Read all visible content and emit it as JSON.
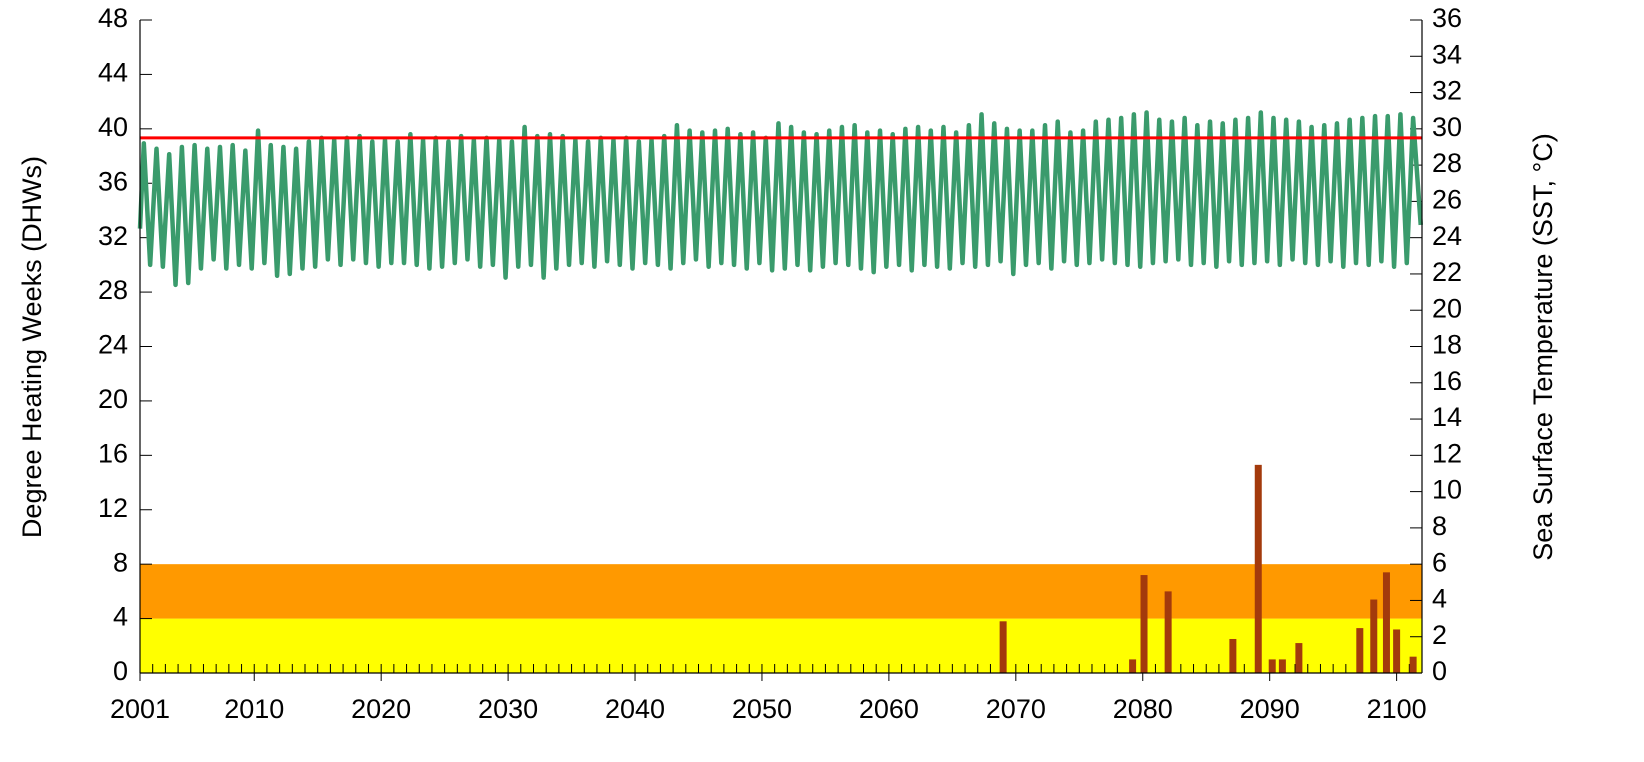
{
  "chart_data": {
    "type": "line",
    "ylabel": "Degree Heating Weeks (DHWs)",
    "y2label": "Sea Surface Temperature (SST, °C)",
    "xlim": [
      2001,
      2102
    ],
    "xticks": [
      2001,
      2010,
      2020,
      2030,
      2040,
      2050,
      2060,
      2070,
      2080,
      2090,
      2100
    ],
    "ylim": [
      0,
      48
    ],
    "yticks": [
      0,
      4,
      8,
      12,
      16,
      20,
      24,
      28,
      32,
      36,
      40,
      44,
      48
    ],
    "y2lim": [
      0,
      36
    ],
    "y2ticks": [
      0,
      2,
      4,
      6,
      8,
      10,
      12,
      14,
      16,
      18,
      20,
      22,
      24,
      26,
      28,
      30,
      32,
      34,
      36
    ],
    "bands": [
      {
        "from": 0,
        "to": 4,
        "color": "#ffff00"
      },
      {
        "from": 4,
        "to": 8,
        "color": "#ff9900"
      }
    ],
    "threshold": {
      "value": 29.5,
      "axis": "y2",
      "color": "#ff0000"
    },
    "series": [
      {
        "name": "SST",
        "type": "line",
        "axis": "y2",
        "color": "#3a9b6c",
        "x": [
          2001,
          2001.3,
          2001.8,
          2002.3,
          2002.8,
          2003.3,
          2003.8,
          2004.3,
          2004.8,
          2005.3,
          2005.8,
          2006.3,
          2006.8,
          2007.3,
          2007.8,
          2008.3,
          2008.8,
          2009.3,
          2009.8,
          2010.3,
          2010.8,
          2011.3,
          2011.8,
          2012.3,
          2012.8,
          2013.3,
          2013.8,
          2014.3,
          2014.8,
          2015.3,
          2015.8,
          2016.3,
          2016.8,
          2017.3,
          2017.8,
          2018.3,
          2018.8,
          2019.3,
          2019.8,
          2020.3,
          2020.8,
          2021.3,
          2021.8,
          2022.3,
          2022.8,
          2023.3,
          2023.8,
          2024.3,
          2024.8,
          2025.3,
          2025.8,
          2026.3,
          2026.8,
          2027.3,
          2027.8,
          2028.3,
          2028.8,
          2029.3,
          2029.8,
          2030.3,
          2030.8,
          2031.3,
          2031.8,
          2032.3,
          2032.8,
          2033.3,
          2033.8,
          2034.3,
          2034.8,
          2035.3,
          2035.8,
          2036.3,
          2036.8,
          2037.3,
          2037.8,
          2038.3,
          2038.8,
          2039.3,
          2039.8,
          2040.3,
          2040.8,
          2041.3,
          2041.8,
          2042.3,
          2042.8,
          2043.3,
          2043.8,
          2044.3,
          2044.8,
          2045.3,
          2045.8,
          2046.3,
          2046.8,
          2047.3,
          2047.8,
          2048.3,
          2048.8,
          2049.3,
          2049.8,
          2050.3,
          2050.8,
          2051.3,
          2051.8,
          2052.3,
          2052.8,
          2053.3,
          2053.8,
          2054.3,
          2054.8,
          2055.3,
          2055.8,
          2056.3,
          2056.8,
          2057.3,
          2057.8,
          2058.3,
          2058.8,
          2059.3,
          2059.8,
          2060.3,
          2060.8,
          2061.3,
          2061.8,
          2062.3,
          2062.8,
          2063.3,
          2063.8,
          2064.3,
          2064.8,
          2065.3,
          2065.8,
          2066.3,
          2066.8,
          2067.3,
          2067.8,
          2068.3,
          2068.8,
          2069.3,
          2069.8,
          2070.3,
          2070.8,
          2071.3,
          2071.8,
          2072.3,
          2072.8,
          2073.3,
          2073.8,
          2074.3,
          2074.8,
          2075.3,
          2075.8,
          2076.3,
          2076.8,
          2077.3,
          2077.8,
          2078.3,
          2078.8,
          2079.3,
          2079.8,
          2080.3,
          2080.8,
          2081.3,
          2081.8,
          2082.3,
          2082.8,
          2083.3,
          2083.8,
          2084.3,
          2084.8,
          2085.3,
          2085.8,
          2086.3,
          2086.8,
          2087.3,
          2087.8,
          2088.3,
          2088.8,
          2089.3,
          2089.8,
          2090.3,
          2090.8,
          2091.3,
          2091.8,
          2092.3,
          2092.8,
          2093.3,
          2093.8,
          2094.3,
          2094.8,
          2095.3,
          2095.8,
          2096.3,
          2096.8,
          2097.3,
          2097.8,
          2098.3,
          2098.8,
          2099.3,
          2099.8,
          2100.3,
          2100.8,
          2101.3,
          2101.9
        ],
        "values": [
          24.5,
          29.2,
          22.5,
          28.9,
          22.4,
          28.6,
          21.4,
          29.0,
          21.5,
          29.1,
          22.3,
          28.9,
          22.8,
          29.0,
          22.3,
          29.1,
          22.5,
          28.8,
          22.3,
          29.9,
          22.6,
          29.1,
          21.9,
          29.0,
          22.0,
          28.9,
          22.3,
          29.3,
          22.4,
          29.5,
          22.8,
          29.4,
          22.5,
          29.5,
          22.8,
          29.6,
          22.6,
          29.3,
          22.4,
          29.4,
          22.6,
          29.3,
          22.6,
          29.7,
          22.5,
          29.4,
          22.3,
          29.5,
          22.4,
          29.3,
          22.6,
          29.6,
          22.8,
          29.4,
          22.4,
          29.5,
          22.5,
          29.4,
          21.8,
          29.3,
          22.4,
          30.1,
          22.5,
          29.6,
          21.8,
          29.7,
          22.3,
          29.6,
          22.5,
          29.4,
          22.6,
          29.3,
          22.4,
          29.5,
          22.7,
          29.4,
          22.5,
          29.5,
          22.3,
          29.3,
          22.6,
          29.4,
          22.5,
          29.6,
          22.3,
          30.2,
          22.6,
          29.9,
          22.8,
          29.8,
          22.4,
          29.9,
          22.6,
          30.0,
          22.5,
          29.7,
          22.3,
          29.8,
          22.6,
          29.5,
          22.2,
          30.3,
          22.3,
          30.1,
          22.5,
          29.8,
          22.2,
          29.7,
          22.4,
          29.9,
          22.6,
          30.1,
          22.5,
          30.2,
          22.3,
          29.8,
          22.1,
          29.9,
          22.4,
          29.7,
          22.5,
          30.0,
          22.2,
          30.1,
          22.5,
          29.9,
          22.4,
          30.1,
          22.3,
          29.8,
          22.6,
          30.2,
          22.4,
          30.8,
          22.5,
          30.3,
          22.7,
          30.0,
          22.0,
          29.9,
          22.5,
          29.9,
          22.6,
          30.2,
          22.3,
          30.4,
          22.7,
          29.8,
          22.5,
          29.9,
          22.6,
          30.4,
          22.8,
          30.5,
          22.6,
          30.6,
          22.5,
          30.8,
          22.4,
          30.9,
          22.6,
          30.5,
          22.7,
          30.4,
          22.8,
          30.6,
          22.5,
          30.2,
          22.6,
          30.4,
          22.4,
          30.3,
          22.7,
          30.5,
          22.5,
          30.6,
          22.6,
          30.9,
          22.7,
          30.6,
          22.5,
          30.5,
          22.8,
          30.4,
          22.6,
          30.1,
          22.5,
          30.2,
          22.7,
          30.3,
          22.4,
          30.5,
          22.6,
          30.6,
          22.5,
          30.7,
          22.7,
          30.7,
          22.4,
          30.8,
          22.6,
          30.6,
          24.7
        ]
      },
      {
        "name": "DHW",
        "type": "spike",
        "axis": "y",
        "color": "#a33a0c",
        "x": [
          2069.0,
          2079.2,
          2080.1,
          2082.0,
          2087.1,
          2089.1,
          2090.2,
          2091.0,
          2092.3,
          2097.1,
          2098.2,
          2099.2,
          2100.0,
          2101.3
        ],
        "values": [
          3.8,
          1.0,
          7.2,
          6.0,
          2.5,
          15.3,
          1.0,
          1.0,
          2.2,
          3.3,
          5.4,
          7.4,
          3.2,
          1.2
        ]
      }
    ]
  }
}
